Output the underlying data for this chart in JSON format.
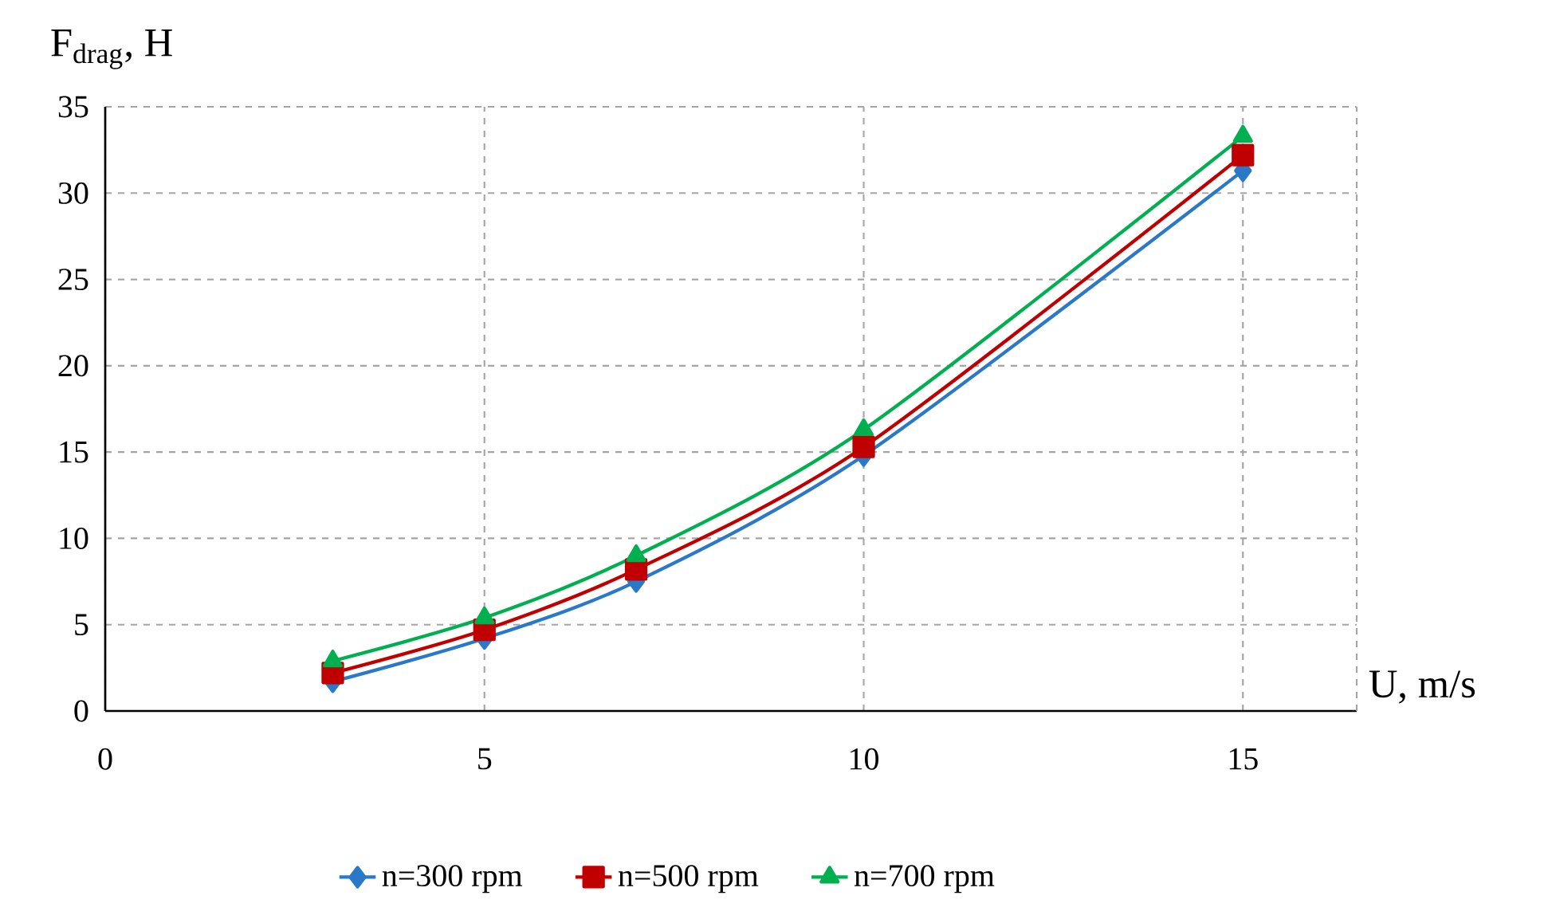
{
  "chart_data": {
    "type": "line",
    "ylabel": "F$_{drag}$, H",
    "xlabel": "U, m/s",
    "x": [
      3,
      5,
      7,
      10,
      15
    ],
    "series": [
      {
        "name": "n=300 rpm",
        "color": "#2a78c8",
        "marker": "diamond",
        "values": [
          1.7,
          4.2,
          7.5,
          14.8,
          31.3
        ]
      },
      {
        "name": "n=500 rpm",
        "color": "#c00000",
        "marker": "square",
        "values": [
          2.2,
          4.7,
          8.2,
          15.3,
          32.2
        ]
      },
      {
        "name": "n=700 rpm",
        "color": "#00b050",
        "marker": "triangle",
        "values": [
          2.9,
          5.4,
          9.0,
          16.3,
          33.3
        ]
      }
    ],
    "xlim": [
      0,
      16.5
    ],
    "xticks": [
      0,
      5,
      10,
      15
    ],
    "ylim": [
      0,
      35
    ],
    "yticks": [
      0,
      5,
      10,
      15,
      20,
      25,
      30,
      35
    ],
    "grid": true,
    "legend": "bottom",
    "line_style": "solid"
  }
}
